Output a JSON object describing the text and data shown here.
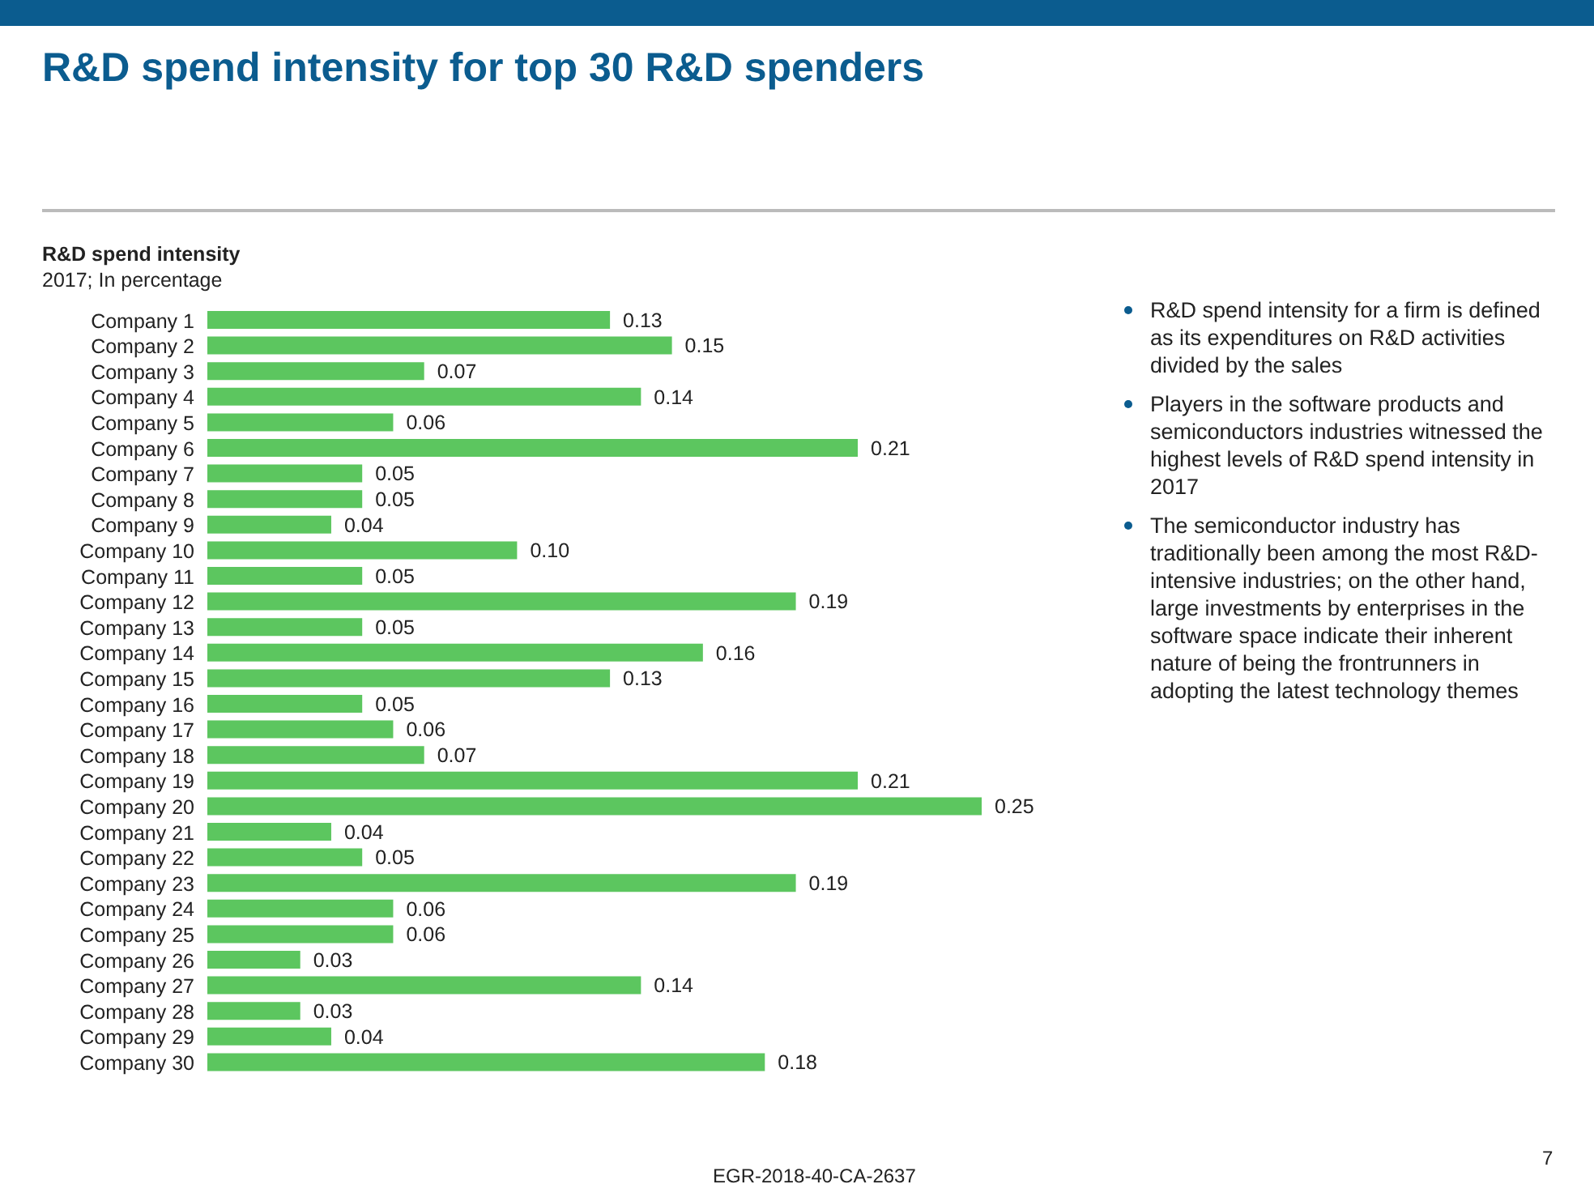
{
  "chart_data": {
    "type": "bar",
    "orientation": "horizontal",
    "title": "R&D spend intensity for top 30 R&D spenders",
    "subtitle": "R&D spend intensity",
    "xlabel": "2017; In percentage",
    "categories": [
      "Company 1",
      "Company 2",
      "Company 3",
      "Company 4",
      "Company 5",
      "Company 6",
      "Company 7",
      "Company 8",
      "Company 9",
      "Company 10",
      "Company 11",
      "Company 12",
      "Company 13",
      "Company 14",
      "Company 15",
      "Company 16",
      "Company 17",
      "Company 18",
      "Company 19",
      "Company 20",
      "Company 21",
      "Company 22",
      "Company 23",
      "Company 24",
      "Company 25",
      "Company 26",
      "Company 27",
      "Company 28",
      "Company 29",
      "Company 30"
    ],
    "values": [
      0.13,
      0.15,
      0.07,
      0.14,
      0.06,
      0.21,
      0.05,
      0.05,
      0.04,
      0.1,
      0.05,
      0.19,
      0.05,
      0.16,
      0.13,
      0.05,
      0.06,
      0.07,
      0.21,
      0.25,
      0.04,
      0.05,
      0.19,
      0.06,
      0.06,
      0.03,
      0.14,
      0.03,
      0.04,
      0.18
    ],
    "value_labels": [
      "0.13",
      "0.15",
      "0.07",
      "0.14",
      "0.06",
      "0.21",
      "0.05",
      "0.05",
      "0.04",
      "0.10",
      "0.05",
      "0.19",
      "0.05",
      "0.16",
      "0.13",
      "0.05",
      "0.06",
      "0.07",
      "0.21",
      "0.25",
      "0.04",
      "0.05",
      "0.19",
      "0.06",
      "0.06",
      "0.03",
      "0.14",
      "0.03",
      "0.04",
      "0.18"
    ],
    "color": "#5cc65f",
    "tick_labels": "y",
    "annotations": [
      "R&D spend intensity for a firm is defined as its expenditures on R&D activities divided by the sales",
      "Players in the software products and semiconductors industries witnessed the highest levels of R&D spend intensity in 2017",
      "The semiconductor industry has traditionally been among the most R&D- intensive industries; on the other hand, large investments by enterprises in the software space indicate their inherent nature of being the frontrunners  in adopting the latest technology themes",
      "EGR-2018-40-CA-2637",
      "7"
    ]
  }
}
